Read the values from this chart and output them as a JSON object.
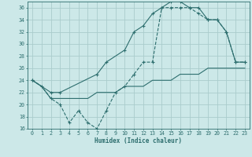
{
  "xlabel": "Humidex (Indice chaleur)",
  "ylabel": "",
  "bg_color": "#cce8e8",
  "grid_color": "#aacccc",
  "line_color": "#2d6e6e",
  "xlim": [
    -0.5,
    23.5
  ],
  "ylim": [
    16,
    37
  ],
  "xticks": [
    0,
    1,
    2,
    3,
    4,
    5,
    6,
    7,
    8,
    9,
    10,
    11,
    12,
    13,
    14,
    15,
    16,
    17,
    18,
    19,
    20,
    21,
    22,
    23
  ],
  "yticks": [
    16,
    18,
    20,
    22,
    24,
    26,
    28,
    30,
    32,
    34,
    36
  ],
  "line1_x": [
    0,
    1,
    2,
    3,
    4,
    5,
    6,
    7,
    8,
    9,
    10,
    11,
    12,
    13,
    14,
    15,
    16,
    17,
    18,
    19,
    20,
    21,
    22,
    23
  ],
  "line1_y": [
    24,
    23,
    21,
    20,
    17,
    19,
    17,
    16,
    19,
    22,
    23,
    25,
    27,
    27,
    36,
    36,
    36,
    36,
    35,
    34,
    34,
    32,
    27,
    27
  ],
  "line2_x": [
    0,
    2,
    3,
    7,
    8,
    10,
    11,
    12,
    13,
    14,
    15,
    16,
    17,
    18,
    19,
    20,
    21,
    22,
    23
  ],
  "line2_y": [
    24,
    22,
    22,
    25,
    27,
    29,
    32,
    33,
    35,
    36,
    37,
    37,
    36,
    36,
    34,
    34,
    32,
    27,
    27
  ],
  "line3_x": [
    0,
    1,
    2,
    3,
    4,
    5,
    6,
    7,
    8,
    9,
    10,
    11,
    12,
    13,
    14,
    15,
    16,
    17,
    18,
    19,
    20,
    21,
    22,
    23
  ],
  "line3_y": [
    24,
    23,
    21,
    21,
    21,
    21,
    21,
    22,
    22,
    22,
    23,
    23,
    23,
    24,
    24,
    24,
    25,
    25,
    25,
    26,
    26,
    26,
    26,
    26
  ]
}
